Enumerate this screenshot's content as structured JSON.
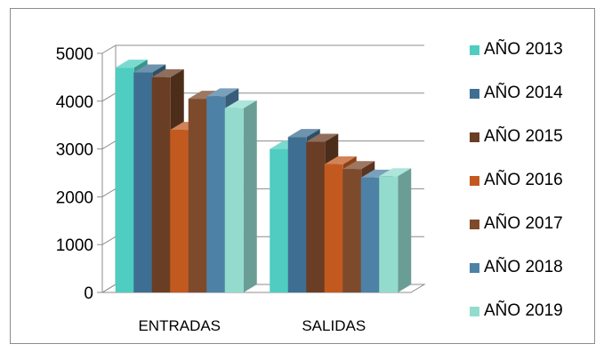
{
  "chart_data": {
    "type": "bar",
    "title": "",
    "xlabel": "",
    "ylabel": "",
    "ylim": [
      0,
      5000
    ],
    "yticks": [
      0,
      1000,
      2000,
      3000,
      4000,
      5000
    ],
    "grid": true,
    "legend_position": "right",
    "categories": [
      "ENTRADAS",
      "SALIDAS"
    ],
    "series": [
      {
        "name": "AÑO 2013",
        "color": "#4ECDC0",
        "values": [
          4700,
          3000
        ]
      },
      {
        "name": "AÑO 2014",
        "color": "#3E6F92",
        "values": [
          4600,
          3250
        ]
      },
      {
        "name": "AÑO 2015",
        "color": "#6A3E24",
        "values": [
          4500,
          3150
        ]
      },
      {
        "name": "AÑO 2016",
        "color": "#C25A1F",
        "values": [
          3400,
          2680
        ]
      },
      {
        "name": "AÑO 2017",
        "color": "#7E4A2C",
        "values": [
          4050,
          2580
        ]
      },
      {
        "name": "AÑO 2018",
        "color": "#4D81A6",
        "values": [
          4100,
          2400
        ]
      },
      {
        "name": "AÑO 2019",
        "color": "#93DCCD",
        "values": [
          3850,
          2430
        ]
      }
    ]
  }
}
